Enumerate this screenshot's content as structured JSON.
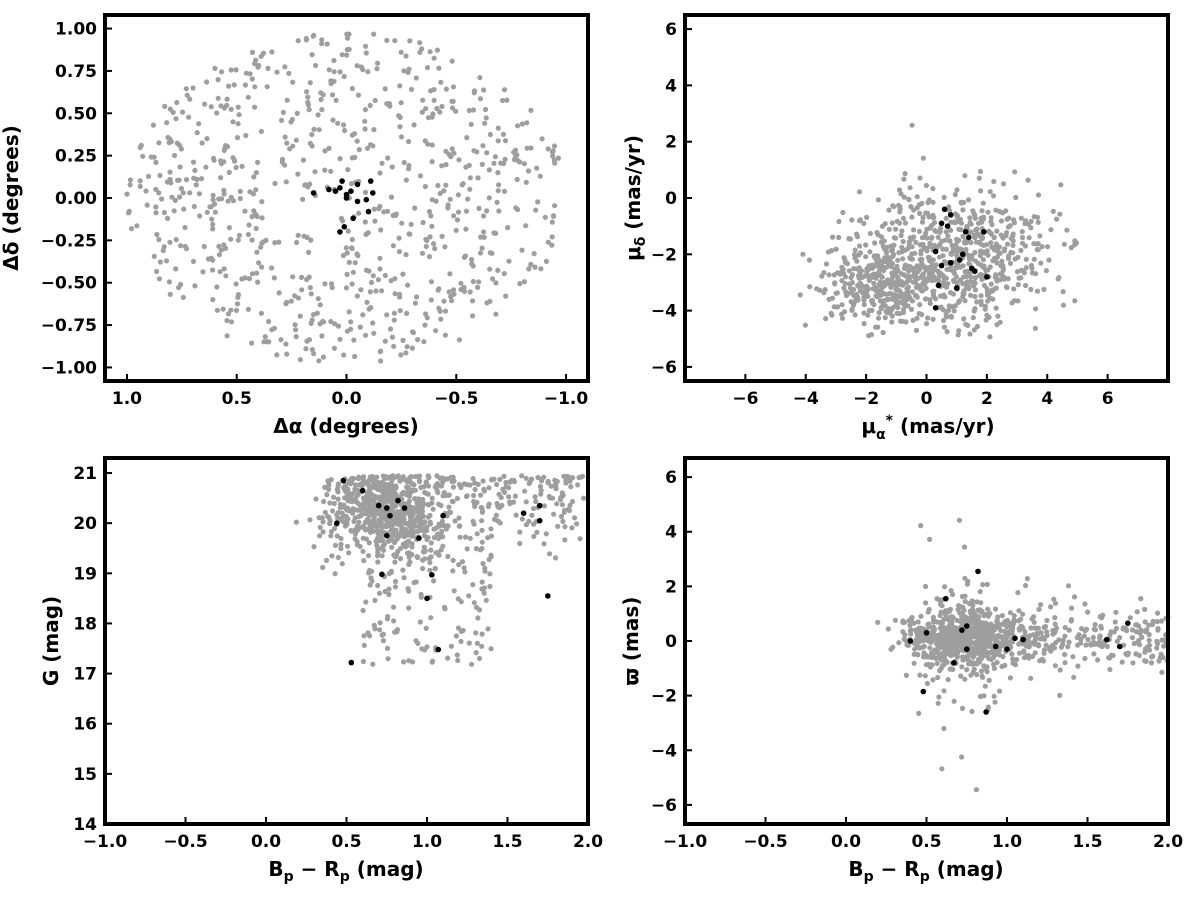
{
  "colors": {
    "background_points": "#9e9e9e",
    "member_points": "#000000",
    "frame": "#000000"
  },
  "chart_data": [
    {
      "type": "scatter",
      "id": "sky",
      "xlabel": "Δα (degrees)",
      "ylabel": "Δδ (degrees)",
      "xlim": [
        1.1,
        -1.1
      ],
      "ylim": [
        -1.08,
        1.08
      ],
      "xticks": [
        1.0,
        0.5,
        0.0,
        -0.5,
        -1.0
      ],
      "xtick_labels": [
        "1.0",
        "0.5",
        "0.0",
        "−0.5",
        "−1.0"
      ],
      "yticks": [
        -1.0,
        -0.75,
        -0.5,
        -0.25,
        0.0,
        0.25,
        0.5,
        0.75,
        1.0
      ],
      "ytick_labels": [
        "−1.00",
        "−0.75",
        "−0.50",
        "−0.25",
        "0.00",
        "0.25",
        "0.50",
        "0.75",
        "1.00"
      ],
      "grid": false,
      "field_distribution": {
        "shape": "disk",
        "center": [
          0.0,
          0.0
        ],
        "radius": [
          1.0,
          0.98
        ],
        "count": 780
      },
      "members": [
        [
          0.02,
          0.1
        ],
        [
          0.03,
          0.06
        ],
        [
          -0.02,
          0.04
        ],
        [
          0.0,
          0.02
        ],
        [
          0.15,
          0.03
        ],
        [
          0.08,
          0.05
        ],
        [
          -0.05,
          0.08
        ],
        [
          -0.11,
          0.1
        ],
        [
          -0.12,
          0.03
        ],
        [
          -0.09,
          -0.01
        ],
        [
          -0.05,
          -0.02
        ],
        [
          -0.1,
          -0.08
        ],
        [
          -0.03,
          -0.12
        ],
        [
          0.01,
          -0.17
        ],
        [
          0.03,
          -0.2
        ],
        [
          0.0,
          0.0
        ],
        [
          0.05,
          0.04
        ]
      ]
    },
    {
      "type": "scatter",
      "id": "proper-motion",
      "xlabel": "μ*α (mas/yr)",
      "ylabel": "μδ (mas/yr)",
      "xlim": [
        -8,
        8
      ],
      "ylim": [
        -6.5,
        6.5
      ],
      "xticks": [
        -6,
        -4,
        -2,
        0,
        2,
        4,
        6
      ],
      "xtick_labels": [
        "−6",
        "−4",
        "−2",
        "0",
        "2",
        "4",
        "6"
      ],
      "yticks": [
        -6,
        -4,
        -2,
        0,
        2,
        4,
        6
      ],
      "ytick_labels": [
        "−6",
        "−4",
        "−2",
        "0",
        "2",
        "4",
        "6"
      ],
      "grid": false,
      "field_distribution": {
        "shape": "cloud",
        "center": [
          1.0,
          -2.2
        ],
        "spread": [
          2.2,
          1.7
        ],
        "count": 1000
      },
      "members": [
        [
          0.5,
          -0.9
        ],
        [
          0.7,
          -1.0
        ],
        [
          0.8,
          -0.6
        ],
        [
          0.6,
          -0.4
        ],
        [
          1.3,
          -1.2
        ],
        [
          1.4,
          -1.4
        ],
        [
          1.9,
          -1.2
        ],
        [
          0.3,
          -1.9
        ],
        [
          1.2,
          -2.0
        ],
        [
          0.8,
          -2.3
        ],
        [
          1.1,
          -2.2
        ],
        [
          0.5,
          -2.4
        ],
        [
          1.6,
          -2.6
        ],
        [
          2.0,
          -2.8
        ],
        [
          0.4,
          -3.1
        ],
        [
          1.0,
          -3.2
        ],
        [
          0.3,
          -3.9
        ],
        [
          1.5,
          -2.5
        ]
      ]
    },
    {
      "type": "scatter",
      "id": "cmd-g",
      "xlabel": "Bp − Rp (mag)",
      "ylabel": "G (mag)",
      "xlim": [
        -1.0,
        2.0
      ],
      "ylim": [
        14.0,
        21.3
      ],
      "y_inverted": false,
      "xticks": [
        -1.0,
        -0.5,
        0.0,
        0.5,
        1.0,
        1.5,
        2.0
      ],
      "xtick_labels": [
        "−1.0",
        "−0.5",
        "0.0",
        "0.5",
        "1.0",
        "1.5",
        "2.0"
      ],
      "yticks": [
        14,
        15,
        16,
        17,
        18,
        19,
        20,
        21
      ],
      "ytick_labels": [
        "14",
        "15",
        "16",
        "17",
        "18",
        "19",
        "20",
        "21"
      ],
      "grid": false,
      "field_distribution": {
        "shape": "cmd",
        "count": 1000
      },
      "members": [
        [
          0.48,
          20.85
        ],
        [
          0.6,
          20.65
        ],
        [
          0.7,
          20.35
        ],
        [
          0.75,
          20.3
        ],
        [
          0.82,
          20.45
        ],
        [
          0.86,
          20.3
        ],
        [
          0.77,
          20.15
        ],
        [
          0.44,
          20.0
        ],
        [
          0.75,
          19.75
        ],
        [
          1.1,
          20.15
        ],
        [
          0.95,
          19.7
        ],
        [
          1.6,
          20.2
        ],
        [
          1.7,
          20.35
        ],
        [
          1.7,
          20.05
        ],
        [
          0.72,
          18.98
        ],
        [
          1.03,
          18.97
        ],
        [
          1.0,
          18.5
        ],
        [
          1.75,
          18.55
        ],
        [
          1.07,
          17.48
        ],
        [
          0.53,
          17.22
        ]
      ]
    },
    {
      "type": "scatter",
      "id": "cmd-parallax",
      "xlabel": "Bp − Rp (mag)",
      "ylabel": "ϖ (mas)",
      "xlim": [
        -1.0,
        2.0
      ],
      "ylim": [
        -6.7,
        6.7
      ],
      "xticks": [
        -1.0,
        -0.5,
        0.0,
        0.5,
        1.0,
        1.5,
        2.0
      ],
      "xtick_labels": [
        "−1.0",
        "−0.5",
        "0.0",
        "0.5",
        "1.0",
        "1.5",
        "2.0"
      ],
      "yticks": [
        -6,
        -4,
        -2,
        0,
        2,
        4,
        6
      ],
      "ytick_labels": [
        "−6",
        "−4",
        "−2",
        "0",
        "2",
        "4",
        "6"
      ],
      "grid": false,
      "field_distribution": {
        "shape": "band",
        "center": 0.1,
        "count": 1000
      },
      "members": [
        [
          0.82,
          2.55
        ],
        [
          0.62,
          1.55
        ],
        [
          0.5,
          0.3
        ],
        [
          0.72,
          0.4
        ],
        [
          0.75,
          0.55
        ],
        [
          0.4,
          0.0
        ],
        [
          0.75,
          -0.3
        ],
        [
          0.93,
          -0.2
        ],
        [
          1.0,
          -0.3
        ],
        [
          1.05,
          0.1
        ],
        [
          1.1,
          0.05
        ],
        [
          1.62,
          0.05
        ],
        [
          1.75,
          0.65
        ],
        [
          1.7,
          -0.2
        ],
        [
          0.67,
          -0.8
        ],
        [
          0.48,
          -1.85
        ],
        [
          0.87,
          -2.6
        ]
      ]
    }
  ]
}
